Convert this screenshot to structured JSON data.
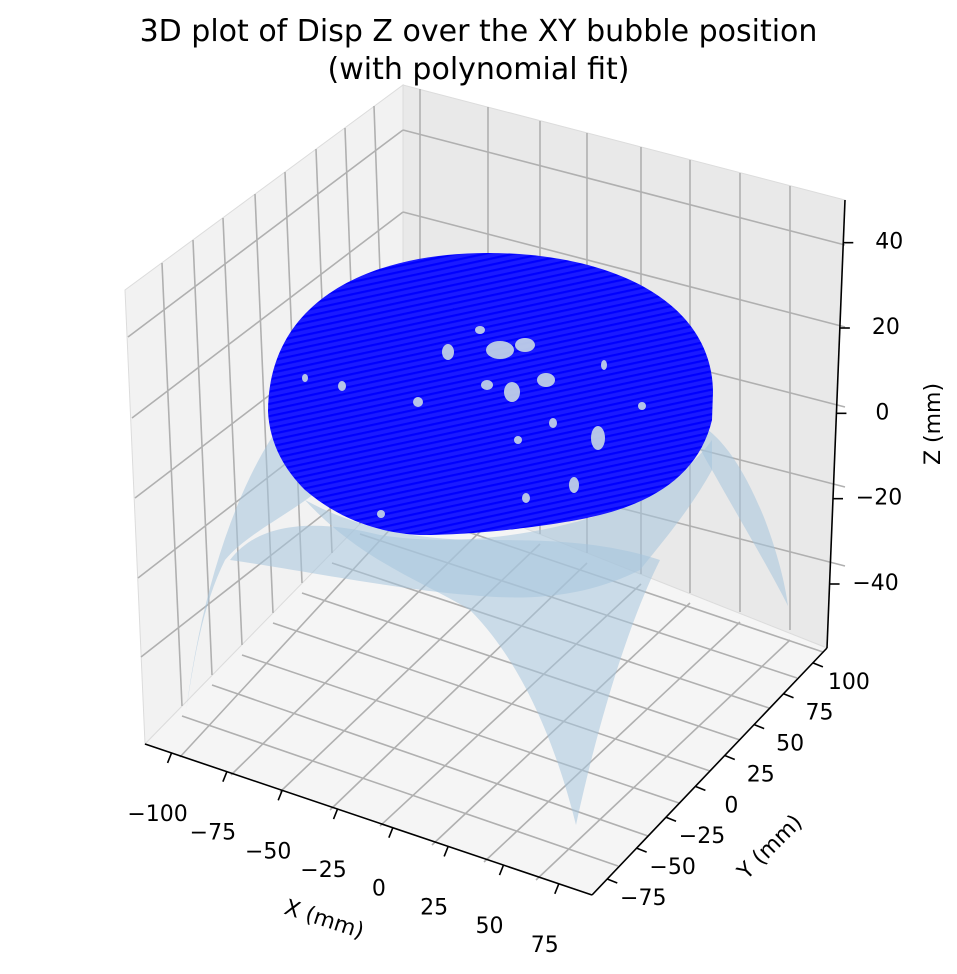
{
  "chart_data": {
    "type": "surface3d",
    "title": "3D plot of Disp Z over the XY bubble position",
    "subtitle": "(with polynomial fit)",
    "xlabel": "X (mm)",
    "ylabel": "Y (mm)",
    "zlabel": "Z (mm)",
    "xlim": [
      -112,
      90
    ],
    "ylim": [
      -88,
      112
    ],
    "zlim": [
      -55,
      50
    ],
    "x_ticks": [
      -100,
      -75,
      -50,
      -25,
      0,
      25,
      50,
      75
    ],
    "x_tick_labels": [
      "−100",
      "−75",
      "−50",
      "−25",
      "0",
      "25",
      "50",
      "75"
    ],
    "y_ticks": [
      -75,
      -50,
      -25,
      0,
      25,
      50,
      75,
      100
    ],
    "y_tick_labels": [
      "−75",
      "−50",
      "−25",
      "0",
      "25",
      "50",
      "75",
      "100"
    ],
    "z_ticks": [
      -40,
      -20,
      0,
      20,
      40
    ],
    "z_tick_labels": [
      "−40",
      "−20",
      "0",
      "20",
      "40"
    ],
    "grid": true,
    "series": [],
    "measured_surface": {
      "color": "#0000ff",
      "peak_z": 38,
      "edge_z": -4,
      "approx_radius_mm": 60
    },
    "polynomial_fit": {
      "color": "#a6c4dc",
      "z_at_center": 38,
      "z_at_corners": -50
    }
  }
}
